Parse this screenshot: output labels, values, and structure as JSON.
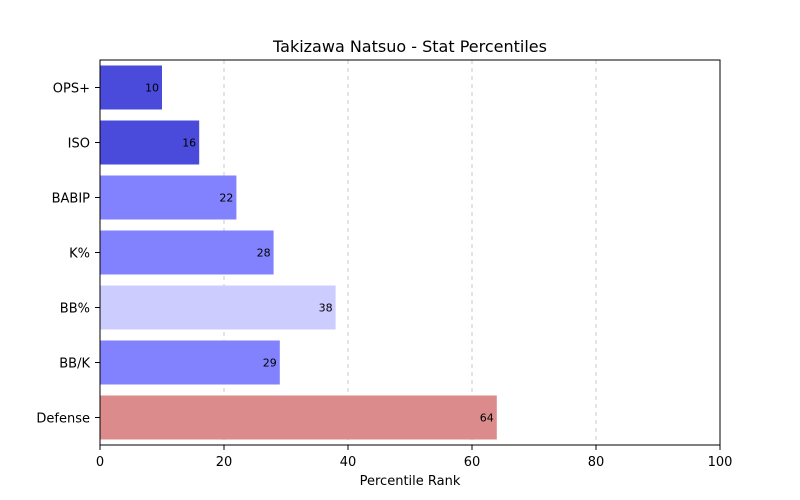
{
  "chart_data": {
    "type": "bar",
    "orientation": "horizontal",
    "title": "Takizawa Natsuo - Stat Percentiles",
    "xlabel": "Percentile Rank",
    "ylabel": "",
    "xlim": [
      0,
      100
    ],
    "xticks": [
      0,
      20,
      40,
      60,
      80,
      100
    ],
    "grid": "x-dashed",
    "categories": [
      "OPS+",
      "ISO",
      "BABIP",
      "K%",
      "BB%",
      "BB/K",
      "Defense"
    ],
    "values": [
      10,
      16,
      22,
      28,
      38,
      29,
      64
    ],
    "colors": [
      "#4b4bdb",
      "#4b4bdb",
      "#8282ff",
      "#8282ff",
      "#ccccff",
      "#8282ff",
      "#db8b8b"
    ]
  }
}
